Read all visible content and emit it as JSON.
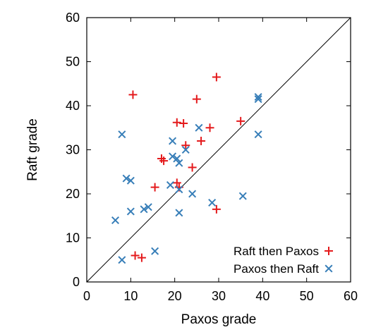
{
  "chart_data": {
    "type": "scatter",
    "xlabel": "Paxos grade",
    "ylabel": "Raft grade",
    "xlim": [
      0,
      60
    ],
    "ylim": [
      0,
      60
    ],
    "xticks": [
      0,
      10,
      20,
      30,
      40,
      50,
      60
    ],
    "yticks": [
      0,
      10,
      20,
      30,
      40,
      50,
      60
    ],
    "grid": false,
    "legend_position": "bottom-right",
    "reference_line": {
      "kind": "diagonal",
      "from": [
        0,
        0
      ],
      "to": [
        60,
        60
      ],
      "color": "#000000"
    },
    "series": [
      {
        "name": "Raft then Paxos",
        "marker": "plus",
        "color": "#e41a1c",
        "points": [
          [
            10.5,
            42.5
          ],
          [
            29.5,
            46.5
          ],
          [
            25,
            41.5
          ],
          [
            35,
            36.5
          ],
          [
            20.5,
            36.2
          ],
          [
            22,
            36
          ],
          [
            28,
            35
          ],
          [
            26,
            32
          ],
          [
            22.5,
            31
          ],
          [
            17,
            28
          ],
          [
            17.5,
            27.5
          ],
          [
            24,
            26
          ],
          [
            20.5,
            22.5
          ],
          [
            21,
            21.5
          ],
          [
            15.5,
            21.5
          ],
          [
            29.5,
            16.5
          ],
          [
            11,
            6
          ],
          [
            12.5,
            5.5
          ]
        ]
      },
      {
        "name": "Paxos then Raft",
        "marker": "x",
        "color": "#377eb8",
        "points": [
          [
            39,
            42
          ],
          [
            39,
            41.5
          ],
          [
            39,
            33.5
          ],
          [
            8,
            33.5
          ],
          [
            25.5,
            35
          ],
          [
            19.5,
            32
          ],
          [
            22.5,
            30
          ],
          [
            19.5,
            28.5
          ],
          [
            20.5,
            28
          ],
          [
            21,
            27
          ],
          [
            9,
            23.5
          ],
          [
            10,
            23
          ],
          [
            19,
            22
          ],
          [
            21,
            21
          ],
          [
            24,
            20
          ],
          [
            35.5,
            19.5
          ],
          [
            28.5,
            18
          ],
          [
            14,
            17
          ],
          [
            13,
            16.5
          ],
          [
            10,
            16
          ],
          [
            21,
            15.7
          ],
          [
            6.5,
            14
          ],
          [
            15.5,
            7
          ],
          [
            8,
            5
          ]
        ]
      }
    ]
  }
}
